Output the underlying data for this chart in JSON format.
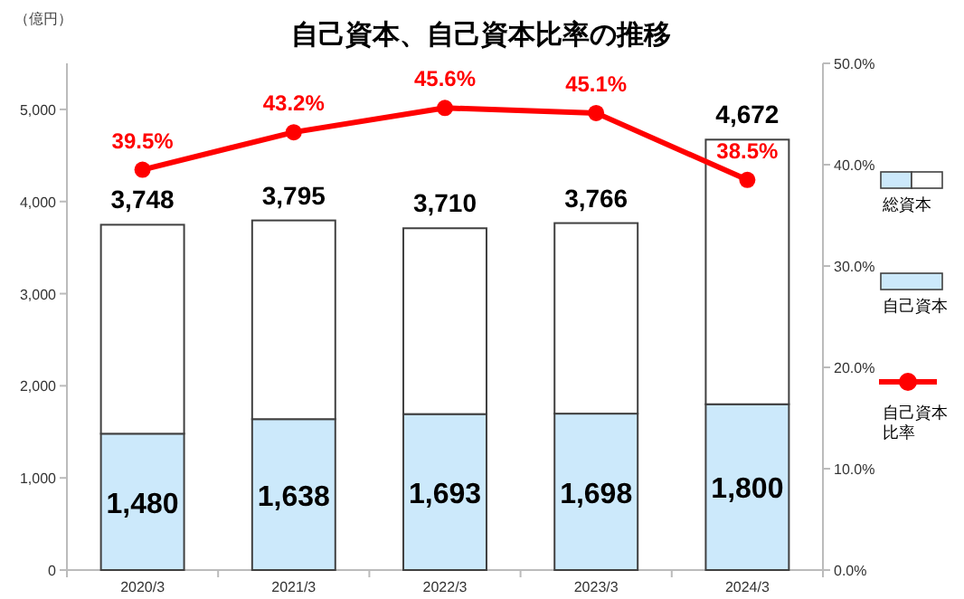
{
  "chart_data": {
    "type": "bar",
    "title": "自己資本、自己資本比率の推移",
    "ylabel": "（億円）",
    "categories": [
      "2020/3",
      "2021/3",
      "2022/3",
      "2023/3",
      "2024/3"
    ],
    "stacked": true,
    "series": [
      {
        "name": "自己資本",
        "color": "#cce9fb",
        "values": [
          1480,
          1638,
          1693,
          1698,
          1800
        ],
        "value_labels": [
          "1,480",
          "1,638",
          "1,693",
          "1,698",
          "1,800"
        ]
      },
      {
        "name": "総資本",
        "color": "#ffffff",
        "values": [
          2268,
          2157,
          2017,
          2068,
          2872
        ]
      },
      {
        "name": "自己資本比率",
        "type": "line",
        "axis": "y2",
        "color": "#ff0000",
        "marker": "circle",
        "values": [
          39.5,
          43.2,
          45.6,
          45.1,
          38.5
        ],
        "value_labels": [
          "39.5%",
          "43.2%",
          "45.6%",
          "45.1%",
          "38.5%"
        ]
      }
    ],
    "totals": [
      "3,748",
      "3,795",
      "3,710",
      "3,766",
      "4,672"
    ],
    "ylim": [
      0,
      5500
    ],
    "yticks": [
      {
        "value": 0,
        "label": "0"
      },
      {
        "value": 1000,
        "label": "1,000"
      },
      {
        "value": 2000,
        "label": "2,000"
      },
      {
        "value": 3000,
        "label": "3,000"
      },
      {
        "value": 4000,
        "label": "4,000"
      },
      {
        "value": 5000,
        "label": "5,000"
      }
    ],
    "y2lim": [
      0,
      50
    ],
    "y2ticks": [
      {
        "value": 0,
        "label": "0.0%"
      },
      {
        "value": 10,
        "label": "10.0%"
      },
      {
        "value": 20,
        "label": "20.0%"
      },
      {
        "value": 30,
        "label": "30.0%"
      },
      {
        "value": 40,
        "label": "40.0%"
      },
      {
        "value": 50,
        "label": "50.0%"
      }
    ],
    "grid": false,
    "legend": "right"
  }
}
